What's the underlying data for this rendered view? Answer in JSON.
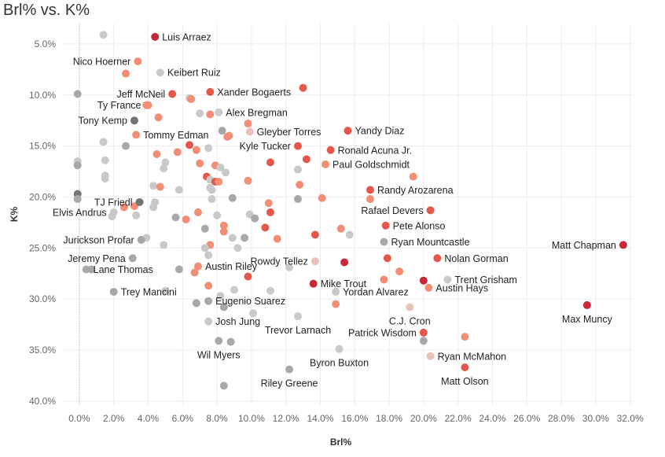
{
  "chart_data": {
    "type": "scatter",
    "title": "Brl% vs. K%",
    "xlabel": "Brl%",
    "ylabel": "K%",
    "xlim": [
      -0.01,
      0.322
    ],
    "ylim": [
      0.03,
      0.404
    ],
    "y_reversed": true,
    "grid": true,
    "x_ticks": [
      0.0,
      0.02,
      0.04,
      0.06,
      0.08,
      0.1,
      0.12,
      0.14,
      0.16,
      0.18,
      0.2,
      0.22,
      0.24,
      0.26,
      0.28,
      0.3,
      0.32
    ],
    "x_tick_labels": [
      "0.0%",
      "2.0%",
      "4.0%",
      "6.0%",
      "8.0%",
      "10.0%",
      "12.0%",
      "14.0%",
      "16.0%",
      "18.0%",
      "20.0%",
      "22.0%",
      "24.0%",
      "26.0%",
      "28.0%",
      "30.0%",
      "32.0%"
    ],
    "y_ticks": [
      0.05,
      0.1,
      0.15,
      0.2,
      0.25,
      0.3,
      0.35,
      0.4
    ],
    "y_tick_labels": [
      "5.0%",
      "10.0%",
      "15.0%",
      "20.0%",
      "25.0%",
      "30.0%",
      "35.0%",
      "40.0%"
    ],
    "colors": {
      "dark_red": "#c8283a",
      "red": "#e5574a",
      "salmon": "#f28d76",
      "pink": "#e8c2ba",
      "light_gray": "#c9c9c9",
      "gray": "#a6a8aa",
      "dark_gray": "#6f7476",
      "zero_line": "#b0b0b0",
      "grid": "#ececec"
    },
    "labeled_points": [
      {
        "name": "Luis Arraez",
        "x": 0.044,
        "y": 0.043,
        "color": "dark_red",
        "label_pos": "right"
      },
      {
        "name": "Nico Hoerner",
        "x": 0.034,
        "y": 0.067,
        "color": "salmon",
        "label_pos": "left"
      },
      {
        "name": "Keibert Ruiz",
        "x": 0.047,
        "y": 0.078,
        "color": "light_gray",
        "label_pos": "right"
      },
      {
        "name": "Jeff McNeil",
        "x": 0.054,
        "y": 0.099,
        "color": "red",
        "label_pos": "left"
      },
      {
        "name": "Xander Bogaerts",
        "x": 0.076,
        "y": 0.097,
        "color": "red",
        "label_pos": "right"
      },
      {
        "name": "Ty France",
        "x": 0.04,
        "y": 0.11,
        "color": "salmon",
        "label_pos": "left"
      },
      {
        "name": "Alex Bregman",
        "x": 0.081,
        "y": 0.117,
        "color": "light_gray",
        "label_pos": "right"
      },
      {
        "name": "Tony Kemp",
        "x": 0.032,
        "y": 0.125,
        "color": "dark_gray",
        "label_pos": "left"
      },
      {
        "name": "Yandy Diaz",
        "x": 0.156,
        "y": 0.135,
        "color": "red",
        "label_pos": "right"
      },
      {
        "name": "Gleyber Torres",
        "x": 0.099,
        "y": 0.136,
        "color": "pink",
        "label_pos": "right"
      },
      {
        "name": "Tommy Edman",
        "x": 0.033,
        "y": 0.139,
        "color": "salmon",
        "label_pos": "right"
      },
      {
        "name": "Kyle Tucker",
        "x": 0.127,
        "y": 0.15,
        "color": "red",
        "label_pos": "left"
      },
      {
        "name": "Ronald Acuna Jr.",
        "x": 0.146,
        "y": 0.154,
        "color": "red",
        "label_pos": "right"
      },
      {
        "name": "Paul Goldschmidt",
        "x": 0.143,
        "y": 0.168,
        "color": "salmon",
        "label_pos": "right"
      },
      {
        "name": "Randy Arozarena",
        "x": 0.169,
        "y": 0.193,
        "color": "red",
        "label_pos": "right"
      },
      {
        "name": "TJ Friedl",
        "x": 0.035,
        "y": 0.205,
        "color": "dark_gray",
        "label_pos": "left"
      },
      {
        "name": "Elvis Andrus",
        "x": 0.02,
        "y": 0.215,
        "color": "light_gray",
        "label_pos": "left"
      },
      {
        "name": "Rafael Devers",
        "x": 0.204,
        "y": 0.213,
        "color": "red",
        "label_pos": "left"
      },
      {
        "name": "Pete Alonso",
        "x": 0.178,
        "y": 0.228,
        "color": "red",
        "label_pos": "right"
      },
      {
        "name": "Jurickson Profar",
        "x": 0.036,
        "y": 0.242,
        "color": "gray",
        "label_pos": "left"
      },
      {
        "name": "Ryan Mountcastle",
        "x": 0.177,
        "y": 0.244,
        "color": "gray",
        "label_pos": "right"
      },
      {
        "name": "Matt Chapman",
        "x": 0.316,
        "y": 0.247,
        "color": "dark_red",
        "label_pos": "left"
      },
      {
        "name": "Rowdy Tellez",
        "x": 0.137,
        "y": 0.263,
        "color": "pink",
        "label_pos": "left"
      },
      {
        "name": "Jeremy Pena",
        "x": 0.031,
        "y": 0.26,
        "color": "gray",
        "label_pos": "left"
      },
      {
        "name": "Nolan Gorman",
        "x": 0.208,
        "y": 0.26,
        "color": "red",
        "label_pos": "right"
      },
      {
        "name": "Austin Riley",
        "x": 0.069,
        "y": 0.268,
        "color": "salmon",
        "label_pos": "right"
      },
      {
        "name": "Mike Trout",
        "x": 0.136,
        "y": 0.285,
        "color": "dark_red",
        "label_pos": "right"
      },
      {
        "name": "Lane Thomas",
        "x": 0.004,
        "y": 0.271,
        "color": "gray",
        "label_pos": "right"
      },
      {
        "name": "Trent Grisham",
        "x": 0.214,
        "y": 0.281,
        "color": "light_gray",
        "label_pos": "right"
      },
      {
        "name": "Yordan Alvarez",
        "x": 0.149,
        "y": 0.293,
        "color": "light_gray",
        "label_pos": "right"
      },
      {
        "name": "Trey Mancini",
        "x": 0.02,
        "y": 0.293,
        "color": "gray",
        "label_pos": "right"
      },
      {
        "name": "Austin Hays",
        "x": 0.203,
        "y": 0.289,
        "color": "salmon",
        "label_pos": "right"
      },
      {
        "name": "Eugenio Suarez",
        "x": 0.075,
        "y": 0.302,
        "color": "gray",
        "label_pos": "right"
      },
      {
        "name": "Max Muncy",
        "x": 0.295,
        "y": 0.306,
        "color": "dark_red",
        "label_pos": "below"
      },
      {
        "name": "Josh Jung",
        "x": 0.075,
        "y": 0.322,
        "color": "light_gray",
        "label_pos": "right"
      },
      {
        "name": "Trevor Larnach",
        "x": 0.127,
        "y": 0.317,
        "color": "light_gray",
        "label_pos": "below"
      },
      {
        "name": "C.J. Cron",
        "x": 0.192,
        "y": 0.308,
        "color": "pink",
        "label_pos": "below"
      },
      {
        "name": "Patrick Wisdom",
        "x": 0.2,
        "y": 0.333,
        "color": "red",
        "label_pos": "left"
      },
      {
        "name": "Wil Myers",
        "x": 0.081,
        "y": 0.341,
        "color": "gray",
        "label_pos": "below"
      },
      {
        "name": "Ryan McMahon",
        "x": 0.204,
        "y": 0.356,
        "color": "pink",
        "label_pos": "right"
      },
      {
        "name": "Byron Buxton",
        "x": 0.151,
        "y": 0.349,
        "color": "light_gray",
        "label_pos": "below"
      },
      {
        "name": "Riley Greene",
        "x": 0.122,
        "y": 0.369,
        "color": "gray",
        "label_pos": "below"
      },
      {
        "name": "Matt Olson",
        "x": 0.224,
        "y": 0.367,
        "color": "red",
        "label_pos": "below"
      }
    ],
    "unlabeled_points": [
      {
        "x": 0.014,
        "y": 0.041,
        "color": "light_gray"
      },
      {
        "x": 0.027,
        "y": 0.079,
        "color": "salmon"
      },
      {
        "x": -0.001,
        "y": 0.099,
        "color": "gray"
      },
      {
        "x": 0.064,
        "y": 0.103,
        "color": "light_gray"
      },
      {
        "x": 0.065,
        "y": 0.104,
        "color": "salmon"
      },
      {
        "x": 0.039,
        "y": 0.11,
        "color": "salmon"
      },
      {
        "x": 0.13,
        "y": 0.093,
        "color": "red"
      },
      {
        "x": 0.046,
        "y": 0.122,
        "color": "salmon"
      },
      {
        "x": 0.07,
        "y": 0.118,
        "color": "light_gray"
      },
      {
        "x": 0.076,
        "y": 0.119,
        "color": "salmon"
      },
      {
        "x": 0.098,
        "y": 0.128,
        "color": "salmon"
      },
      {
        "x": 0.083,
        "y": 0.135,
        "color": "gray"
      },
      {
        "x": 0.086,
        "y": 0.141,
        "color": "salmon"
      },
      {
        "x": 0.087,
        "y": 0.14,
        "color": "salmon"
      },
      {
        "x": 0.014,
        "y": 0.146,
        "color": "light_gray"
      },
      {
        "x": 0.027,
        "y": 0.15,
        "color": "gray"
      },
      {
        "x": 0.064,
        "y": 0.149,
        "color": "red"
      },
      {
        "x": 0.068,
        "y": 0.154,
        "color": "salmon"
      },
      {
        "x": 0.075,
        "y": 0.152,
        "color": "light_gray"
      },
      {
        "x": 0.045,
        "y": 0.158,
        "color": "salmon"
      },
      {
        "x": 0.057,
        "y": 0.156,
        "color": "salmon"
      },
      {
        "x": -0.001,
        "y": 0.165,
        "color": "light_gray"
      },
      {
        "x": -0.001,
        "y": 0.169,
        "color": "gray"
      },
      {
        "x": 0.015,
        "y": 0.164,
        "color": "light_gray"
      },
      {
        "x": 0.05,
        "y": 0.166,
        "color": "light_gray"
      },
      {
        "x": 0.049,
        "y": 0.172,
        "color": "light_gray"
      },
      {
        "x": 0.07,
        "y": 0.167,
        "color": "salmon"
      },
      {
        "x": 0.079,
        "y": 0.169,
        "color": "salmon"
      },
      {
        "x": 0.082,
        "y": 0.171,
        "color": "light_gray"
      },
      {
        "x": 0.085,
        "y": 0.176,
        "color": "light_gray"
      },
      {
        "x": 0.111,
        "y": 0.166,
        "color": "red"
      },
      {
        "x": 0.132,
        "y": 0.163,
        "color": "red"
      },
      {
        "x": 0.127,
        "y": 0.173,
        "color": "light_gray"
      },
      {
        "x": 0.194,
        "y": 0.18,
        "color": "salmon"
      },
      {
        "x": 0.015,
        "y": 0.179,
        "color": "light_gray"
      },
      {
        "x": 0.015,
        "y": 0.182,
        "color": "light_gray"
      },
      {
        "x": 0.074,
        "y": 0.18,
        "color": "red"
      },
      {
        "x": 0.076,
        "y": 0.183,
        "color": "light_gray"
      },
      {
        "x": 0.079,
        "y": 0.185,
        "color": "red"
      },
      {
        "x": 0.081,
        "y": 0.185,
        "color": "salmon"
      },
      {
        "x": 0.098,
        "y": 0.184,
        "color": "salmon"
      },
      {
        "x": 0.043,
        "y": 0.189,
        "color": "light_gray"
      },
      {
        "x": 0.047,
        "y": 0.19,
        "color": "salmon"
      },
      {
        "x": 0.058,
        "y": 0.193,
        "color": "light_gray"
      },
      {
        "x": 0.076,
        "y": 0.191,
        "color": "light_gray"
      },
      {
        "x": 0.077,
        "y": 0.193,
        "color": "light_gray"
      },
      {
        "x": 0.128,
        "y": 0.188,
        "color": "salmon"
      },
      {
        "x": -0.001,
        "y": 0.197,
        "color": "dark_gray"
      },
      {
        "x": -0.001,
        "y": 0.202,
        "color": "gray"
      },
      {
        "x": 0.044,
        "y": 0.205,
        "color": "light_gray"
      },
      {
        "x": 0.077,
        "y": 0.202,
        "color": "light_gray"
      },
      {
        "x": 0.089,
        "y": 0.201,
        "color": "gray"
      },
      {
        "x": 0.11,
        "y": 0.206,
        "color": "salmon"
      },
      {
        "x": 0.127,
        "y": 0.202,
        "color": "gray"
      },
      {
        "x": 0.141,
        "y": 0.201,
        "color": "salmon"
      },
      {
        "x": 0.169,
        "y": 0.202,
        "color": "salmon"
      },
      {
        "x": 0.026,
        "y": 0.21,
        "color": "salmon"
      },
      {
        "x": 0.032,
        "y": 0.209,
        "color": "salmon"
      },
      {
        "x": 0.043,
        "y": 0.21,
        "color": "light_gray"
      },
      {
        "x": 0.019,
        "y": 0.219,
        "color": "light_gray"
      },
      {
        "x": 0.033,
        "y": 0.218,
        "color": "light_gray"
      },
      {
        "x": 0.069,
        "y": 0.215,
        "color": "salmon"
      },
      {
        "x": 0.08,
        "y": 0.218,
        "color": "light_gray"
      },
      {
        "x": 0.099,
        "y": 0.217,
        "color": "light_gray"
      },
      {
        "x": 0.102,
        "y": 0.221,
        "color": "gray"
      },
      {
        "x": 0.111,
        "y": 0.215,
        "color": "red"
      },
      {
        "x": 0.056,
        "y": 0.22,
        "color": "gray"
      },
      {
        "x": 0.062,
        "y": 0.222,
        "color": "salmon"
      },
      {
        "x": 0.073,
        "y": 0.231,
        "color": "gray"
      },
      {
        "x": 0.084,
        "y": 0.228,
        "color": "salmon"
      },
      {
        "x": 0.108,
        "y": 0.23,
        "color": "red"
      },
      {
        "x": 0.152,
        "y": 0.231,
        "color": "salmon"
      },
      {
        "x": 0.084,
        "y": 0.234,
        "color": "salmon"
      },
      {
        "x": 0.039,
        "y": 0.24,
        "color": "light_gray"
      },
      {
        "x": 0.089,
        "y": 0.24,
        "color": "light_gray"
      },
      {
        "x": 0.096,
        "y": 0.24,
        "color": "gray"
      },
      {
        "x": 0.115,
        "y": 0.241,
        "color": "salmon"
      },
      {
        "x": 0.137,
        "y": 0.237,
        "color": "red"
      },
      {
        "x": 0.157,
        "y": 0.237,
        "color": "light_gray"
      },
      {
        "x": 0.049,
        "y": 0.247,
        "color": "light_gray"
      },
      {
        "x": 0.076,
        "y": 0.247,
        "color": "salmon"
      },
      {
        "x": 0.073,
        "y": 0.25,
        "color": "light_gray"
      },
      {
        "x": 0.092,
        "y": 0.25,
        "color": "light_gray"
      },
      {
        "x": 0.075,
        "y": 0.257,
        "color": "light_gray"
      },
      {
        "x": 0.179,
        "y": 0.26,
        "color": "red"
      },
      {
        "x": 0.154,
        "y": 0.264,
        "color": "dark_red"
      },
      {
        "x": 0.007,
        "y": 0.271,
        "color": "gray"
      },
      {
        "x": 0.058,
        "y": 0.271,
        "color": "gray"
      },
      {
        "x": 0.122,
        "y": 0.269,
        "color": "light_gray"
      },
      {
        "x": 0.067,
        "y": 0.274,
        "color": "salmon"
      },
      {
        "x": 0.098,
        "y": 0.278,
        "color": "red"
      },
      {
        "x": 0.186,
        "y": 0.273,
        "color": "salmon"
      },
      {
        "x": 0.177,
        "y": 0.281,
        "color": "salmon"
      },
      {
        "x": 0.2,
        "y": 0.282,
        "color": "dark_red"
      },
      {
        "x": 0.075,
        "y": 0.287,
        "color": "salmon"
      },
      {
        "x": 0.09,
        "y": 0.291,
        "color": "light_gray"
      },
      {
        "x": 0.05,
        "y": 0.292,
        "color": "light_gray"
      },
      {
        "x": 0.111,
        "y": 0.292,
        "color": "light_gray"
      },
      {
        "x": 0.082,
        "y": 0.297,
        "color": "light_gray"
      },
      {
        "x": 0.068,
        "y": 0.304,
        "color": "gray"
      },
      {
        "x": 0.149,
        "y": 0.305,
        "color": "salmon"
      },
      {
        "x": 0.084,
        "y": 0.308,
        "color": "gray"
      },
      {
        "x": 0.101,
        "y": 0.314,
        "color": "light_gray"
      },
      {
        "x": 0.224,
        "y": 0.337,
        "color": "salmon"
      },
      {
        "x": 0.2,
        "y": 0.341,
        "color": "gray"
      },
      {
        "x": 0.088,
        "y": 0.342,
        "color": "gray"
      },
      {
        "x": 0.084,
        "y": 0.385,
        "color": "gray"
      }
    ]
  }
}
